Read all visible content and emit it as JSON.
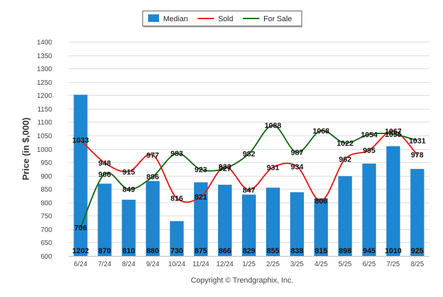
{
  "chart_data": {
    "type": "bar",
    "categories": [
      "6/24",
      "7/24",
      "8/24",
      "9/24",
      "10/24",
      "11/24",
      "12/24",
      "1/25",
      "2/25",
      "3/25",
      "4/25",
      "5/25",
      "6/25",
      "7/25",
      "8/25"
    ],
    "series": [
      {
        "name": "Median",
        "type": "bar",
        "color": "#1f86d1",
        "values": [
          1202,
          870,
          810,
          880,
          730,
          875,
          866,
          829,
          855,
          838,
          815,
          898,
          945,
          1010,
          925
        ]
      },
      {
        "name": "Sold",
        "type": "line",
        "color": "#e02020",
        "values": [
          1033,
          948,
          915,
          977,
          816,
          821,
          933,
          847,
          931,
          934,
          806,
          962,
          995,
          1067,
          978
        ]
      },
      {
        "name": "For Sale",
        "type": "line",
        "color": "#1a6e1a",
        "values": [
          706,
          906,
          849,
          896,
          983,
          923,
          927,
          982,
          1088,
          987,
          1068,
          1022,
          1054,
          1055,
          1031
        ]
      }
    ],
    "ylabel": "Price (in $,000)",
    "ylim": [
      600,
      1400
    ],
    "yticks": [
      600,
      650,
      700,
      750,
      800,
      850,
      900,
      950,
      1000,
      1050,
      1100,
      1150,
      1200,
      1250,
      1300,
      1350,
      1400
    ],
    "grid": true,
    "legend_position": "top-center",
    "footer": "Copyright © Trendgraphix, Inc."
  }
}
